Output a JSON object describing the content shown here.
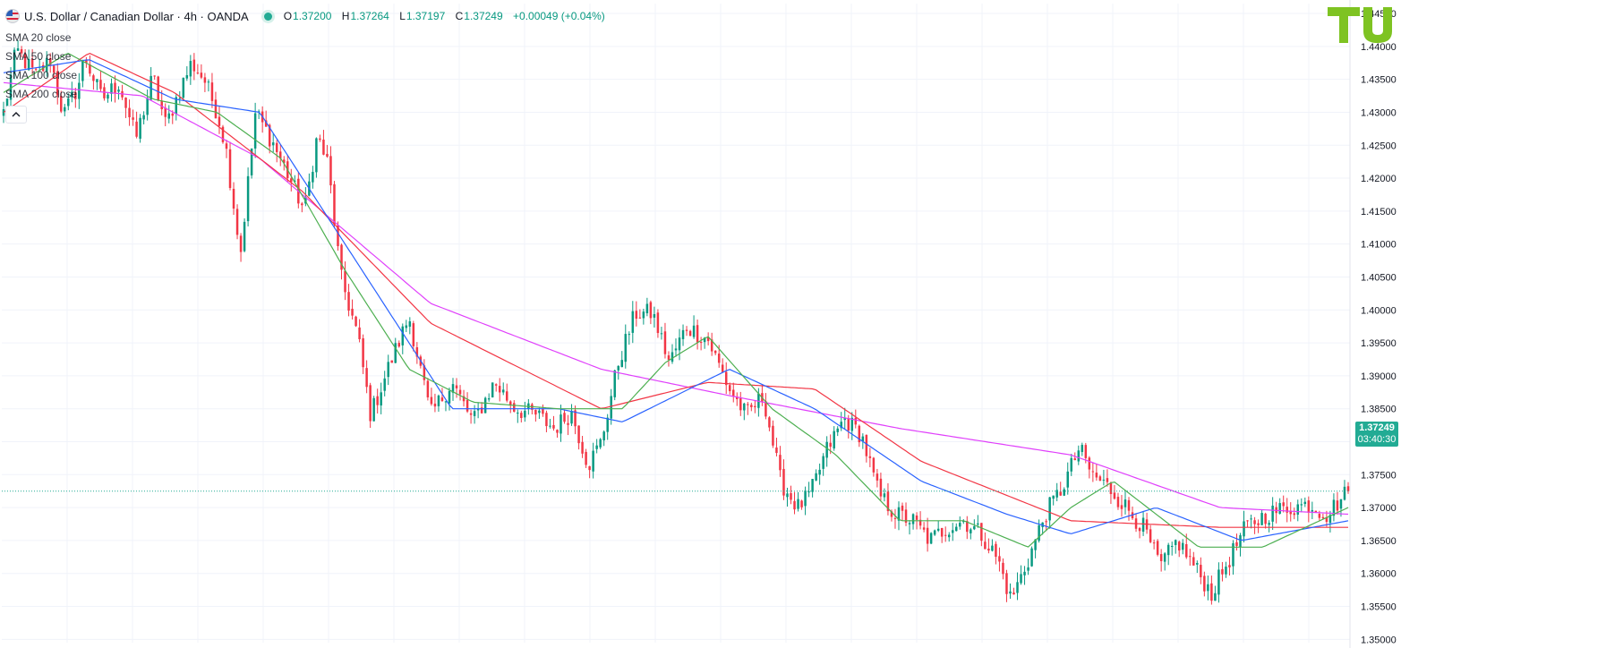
{
  "header": {
    "symbol_title": "U.S. Dollar / Canadian Dollar · 4h · OANDA",
    "ohlc": [
      {
        "key": "O",
        "value": "1.37200"
      },
      {
        "key": "H",
        "value": "1.37264"
      },
      {
        "key": "L",
        "value": "1.37197"
      },
      {
        "key": "C",
        "value": "1.37249"
      }
    ],
    "change": "+0.00049 (+0.04%)",
    "collapse_icon": "chevron-up-icon"
  },
  "indicators": [
    {
      "label": "SMA 20 close",
      "color": "#4caf50"
    },
    {
      "label": "SMA 50 close",
      "color": "#2962ff"
    },
    {
      "label": "SMA 100 close",
      "color": "#f23645"
    },
    {
      "label": "SMA 200 close",
      "color": "#e040fb"
    }
  ],
  "logo": {
    "text": "TU",
    "color": "#7ec322"
  },
  "last_price": {
    "price": "1.37249",
    "countdown": "03:40:30",
    "color": "#22ab94"
  },
  "colors": {
    "up": "#089981",
    "down": "#f23645",
    "grid": "#f0f3fa"
  },
  "chart_data": {
    "type": "candlestick",
    "title": "U.S. Dollar / Canadian Dollar · 4h · OANDA",
    "ylim": [
      1.3495,
      1.4465
    ],
    "y_ticks": [
      "1.35000",
      "1.35500",
      "1.36000",
      "1.36500",
      "1.37000",
      "1.37500",
      "1.38000",
      "1.38500",
      "1.39000",
      "1.39500",
      "1.40000",
      "1.40500",
      "1.41000",
      "1.41500",
      "1.42000",
      "1.42500",
      "1.43000",
      "1.43500",
      "1.44000",
      "1.44500"
    ],
    "candles": 375,
    "price_path": [
      [
        0,
        1.43
      ],
      [
        6,
        1.4395
      ],
      [
        15,
        1.4355
      ],
      [
        22,
        1.438
      ],
      [
        28,
        1.4295
      ],
      [
        35,
        1.434
      ],
      [
        38,
        1.4385
      ],
      [
        46,
        1.432
      ],
      [
        54,
        1.4345
      ],
      [
        62,
        1.426
      ],
      [
        70,
        1.4355
      ],
      [
        76,
        1.428
      ],
      [
        82,
        1.433
      ],
      [
        88,
        1.4375
      ],
      [
        94,
        1.435
      ],
      [
        100,
        1.43
      ],
      [
        104,
        1.425
      ],
      [
        111,
        1.4085
      ],
      [
        118,
        1.43
      ],
      [
        126,
        1.4255
      ],
      [
        134,
        1.42
      ],
      [
        141,
        1.415
      ],
      [
        147,
        1.4265
      ],
      [
        152,
        1.422
      ],
      [
        158,
        1.405
      ],
      [
        166,
        1.396
      ],
      [
        172,
        1.384
      ],
      [
        180,
        1.391
      ],
      [
        190,
        1.399
      ],
      [
        200,
        1.384
      ],
      [
        210,
        1.389
      ],
      [
        220,
        1.383
      ],
      [
        230,
        1.389
      ],
      [
        240,
        1.385
      ],
      [
        250,
        1.384
      ],
      [
        258,
        1.382
      ],
      [
        266,
        1.3845
      ],
      [
        274,
        1.3765
      ],
      [
        280,
        1.38
      ],
      [
        288,
        1.392
      ],
      [
        296,
        1.3995
      ],
      [
        304,
        1.3995
      ],
      [
        312,
        1.392
      ],
      [
        320,
        1.3975
      ],
      [
        330,
        1.3955
      ],
      [
        340,
        1.388
      ],
      [
        348,
        1.384
      ],
      [
        356,
        1.387
      ],
      [
        364,
        1.374
      ],
      [
        372,
        1.37
      ],
      [
        378,
        1.372
      ],
      [
        386,
        1.379
      ],
      [
        394,
        1.3835
      ],
      [
        402,
        1.381
      ],
      [
        410,
        1.372
      ],
      [
        418,
        1.369
      ],
      [
        426,
        1.368
      ],
      [
        434,
        1.365
      ],
      [
        442,
        1.367
      ],
      [
        450,
        1.368
      ],
      [
        458,
        1.366
      ],
      [
        466,
        1.362
      ],
      [
        472,
        1.356
      ],
      [
        480,
        1.362
      ],
      [
        488,
        1.369
      ],
      [
        496,
        1.373
      ],
      [
        504,
        1.379
      ],
      [
        510,
        1.375
      ],
      [
        518,
        1.373
      ],
      [
        526,
        1.37
      ],
      [
        534,
        1.367
      ],
      [
        542,
        1.361
      ],
      [
        550,
        1.365
      ],
      [
        558,
        1.361
      ],
      [
        566,
        1.357
      ],
      [
        574,
        1.362
      ],
      [
        582,
        1.367
      ],
      [
        592,
        1.369
      ],
      [
        602,
        1.37
      ],
      [
        612,
        1.3705
      ],
      [
        620,
        1.369
      ],
      [
        630,
        1.3725
      ]
    ],
    "sma": [
      {
        "name": "SMA 20 close",
        "color": "#4caf50",
        "period": 20
      },
      {
        "name": "SMA 50 close",
        "color": "#2962ff",
        "period": 50
      },
      {
        "name": "SMA 100 close",
        "color": "#f23645",
        "period": 100
      },
      {
        "name": "SMA 200 close",
        "color": "#e040fb",
        "period": 200
      }
    ],
    "sma_anchor": [
      {
        "name": "SMA 200 close",
        "points": [
          [
            0,
            1.4345
          ],
          [
            65,
            1.4325
          ],
          [
            120,
            1.423
          ],
          [
            200,
            1.401
          ],
          [
            280,
            1.391
          ],
          [
            340,
            1.387
          ],
          [
            420,
            1.382
          ],
          [
            500,
            1.378
          ],
          [
            570,
            1.37
          ],
          [
            630,
            1.369
          ]
        ]
      },
      {
        "name": "SMA 100 close",
        "points": [
          [
            0,
            1.43
          ],
          [
            40,
            1.439
          ],
          [
            80,
            1.433
          ],
          [
            140,
            1.418
          ],
          [
            200,
            1.398
          ],
          [
            280,
            1.385
          ],
          [
            330,
            1.389
          ],
          [
            380,
            1.388
          ],
          [
            430,
            1.377
          ],
          [
            500,
            1.368
          ],
          [
            570,
            1.367
          ],
          [
            630,
            1.367
          ]
        ]
      },
      {
        "name": "SMA 50 close",
        "points": [
          [
            0,
            1.436
          ],
          [
            40,
            1.438
          ],
          [
            80,
            1.432
          ],
          [
            120,
            1.43
          ],
          [
            170,
            1.405
          ],
          [
            210,
            1.385
          ],
          [
            260,
            1.385
          ],
          [
            290,
            1.383
          ],
          [
            340,
            1.391
          ],
          [
            380,
            1.385
          ],
          [
            430,
            1.374
          ],
          [
            470,
            1.369
          ],
          [
            500,
            1.366
          ],
          [
            540,
            1.37
          ],
          [
            580,
            1.365
          ],
          [
            630,
            1.368
          ]
        ]
      },
      {
        "name": "SMA 20 close",
        "points": [
          [
            0,
            1.433
          ],
          [
            30,
            1.439
          ],
          [
            70,
            1.432
          ],
          [
            100,
            1.43
          ],
          [
            130,
            1.423
          ],
          [
            160,
            1.406
          ],
          [
            190,
            1.391
          ],
          [
            220,
            1.386
          ],
          [
            260,
            1.385
          ],
          [
            290,
            1.385
          ],
          [
            310,
            1.392
          ],
          [
            330,
            1.396
          ],
          [
            360,
            1.385
          ],
          [
            390,
            1.378
          ],
          [
            420,
            1.368
          ],
          [
            450,
            1.368
          ],
          [
            480,
            1.364
          ],
          [
            500,
            1.37
          ],
          [
            520,
            1.374
          ],
          [
            560,
            1.364
          ],
          [
            590,
            1.364
          ],
          [
            630,
            1.37
          ]
        ]
      }
    ]
  }
}
